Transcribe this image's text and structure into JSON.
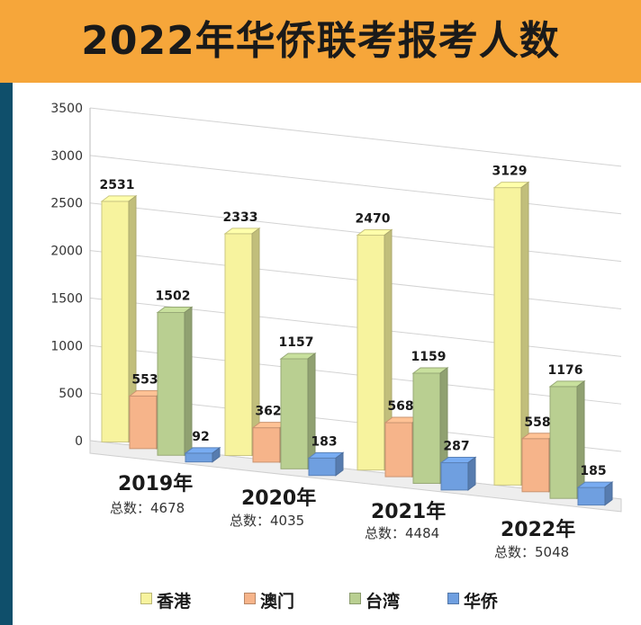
{
  "title": "2022年华侨联考报考人数",
  "chart_data": {
    "type": "bar",
    "title": "2022年华侨联考报考人数",
    "categories": [
      "2019年",
      "2020年",
      "2021年",
      "2022年"
    ],
    "totals": [
      "总数：4678",
      "总数：4035",
      "总数：4484",
      "总数：5048"
    ],
    "series": [
      {
        "name": "香港",
        "values": [
          2531,
          2333,
          2470,
          3129
        ]
      },
      {
        "name": "澳门",
        "values": [
          553,
          362,
          568,
          558
        ]
      },
      {
        "name": "台湾",
        "values": [
          1502,
          1157,
          1159,
          1176
        ]
      },
      {
        "name": "华侨",
        "values": [
          92,
          183,
          287,
          185
        ]
      }
    ],
    "ylim": [
      0,
      3500
    ],
    "yticks": [
      0,
      500,
      1000,
      1500,
      2000,
      2500,
      3000,
      3500
    ],
    "grid": true,
    "legend": "bottom",
    "colors": {
      "香港": "#f7f39e",
      "澳门": "#f6b48a",
      "台湾": "#b9cf91",
      "华侨": "#6f9fe0"
    }
  }
}
